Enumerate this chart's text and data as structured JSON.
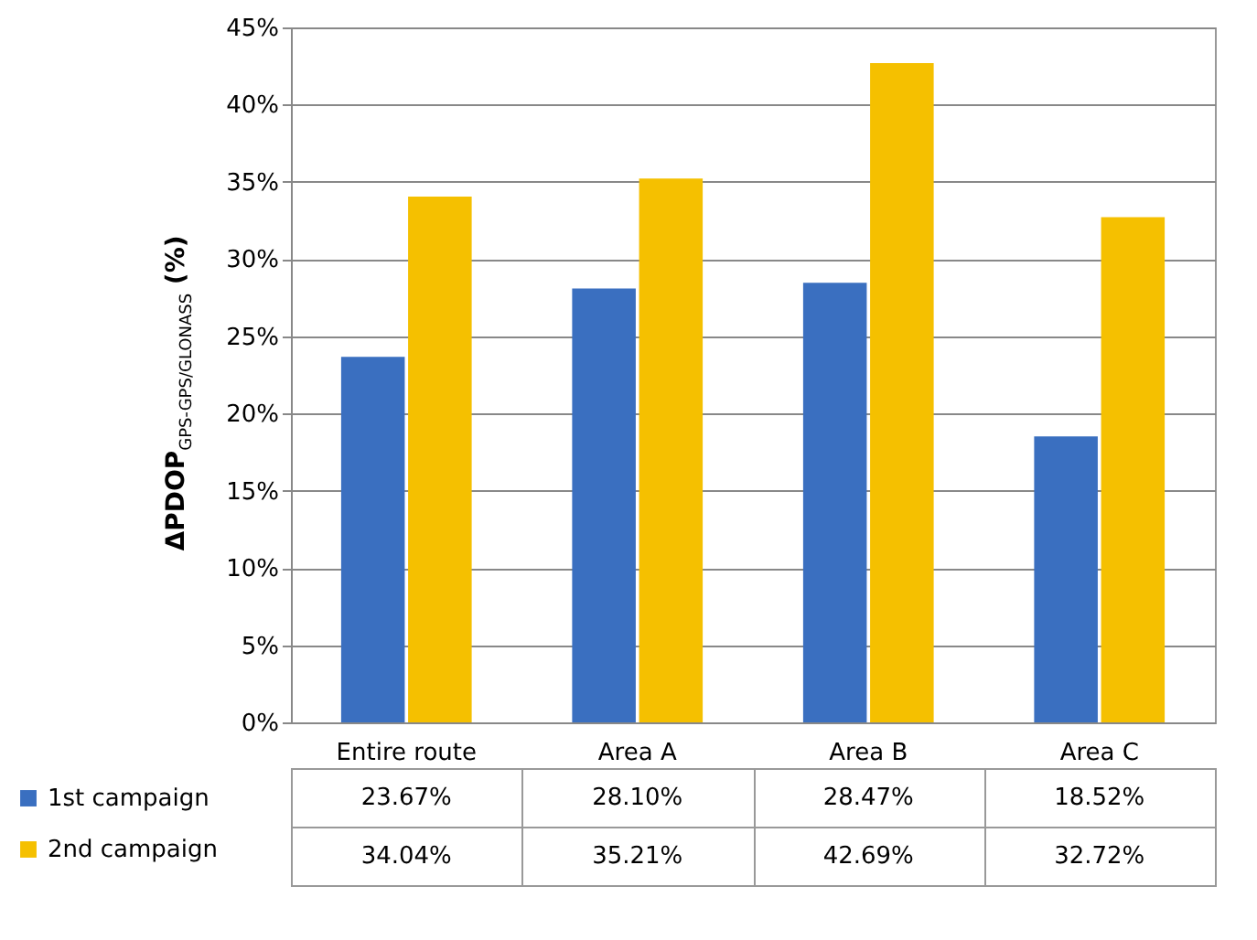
{
  "chart_data": {
    "type": "bar",
    "ylabel": "ΔPDOP$_{GPS-GPS/GLONASS}$ (%)",
    "categories": [
      "Entire route",
      "Area A",
      "Area B",
      "Area C"
    ],
    "series": [
      {
        "name": "1st campaign",
        "color": "#3a6fc0",
        "values": [
          23.67,
          28.1,
          28.47,
          18.52
        ],
        "value_labels": [
          "23.67%",
          "28.10%",
          "28.47%",
          "18.52%"
        ]
      },
      {
        "name": "2nd campaign",
        "color": "#f5c000",
        "values": [
          34.04,
          35.21,
          42.69,
          32.72
        ],
        "value_labels": [
          "34.04%",
          "35.21%",
          "42.69%",
          "32.72%"
        ]
      }
    ],
    "ylim": [
      0,
      45
    ],
    "yticks": [
      {
        "value": 0,
        "label": "0%"
      },
      {
        "value": 5,
        "label": "5%"
      },
      {
        "value": 10,
        "label": "10%"
      },
      {
        "value": 15,
        "label": "15%"
      },
      {
        "value": 20,
        "label": "20%"
      },
      {
        "value": 25,
        "label": "25%"
      },
      {
        "value": 30,
        "label": "30%"
      },
      {
        "value": 35,
        "label": "35%"
      },
      {
        "value": 40,
        "label": "40%"
      },
      {
        "value": 45,
        "label": "45%"
      }
    ],
    "grid": "y",
    "legend": "bottom left"
  }
}
